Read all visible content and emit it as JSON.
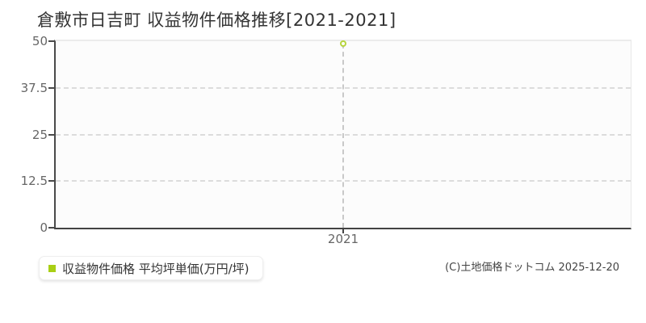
{
  "title": "倉敷市日吉町 収益物件価格推移[2021-2021]",
  "legend": {
    "label": "収益物件価格 平均坪単価(万円/坪)",
    "marker_color": "#a9cf15"
  },
  "copyright": "(C)土地価格ドットコム 2025-12-20",
  "colors": {
    "point_stroke": "#b7d43e",
    "axis": "#4a4a4a",
    "grid": "#dcdcdc",
    "tick_label": "#666666"
  },
  "chart_data": {
    "type": "scatter",
    "title": "倉敷市日吉町 収益物件価格推移[2021-2021]",
    "x": [
      2021
    ],
    "x_tick_labels": [
      "2021"
    ],
    "series": [
      {
        "name": "収益物件価格 平均坪単価(万円/坪)",
        "values": [
          49.3
        ]
      }
    ],
    "xlabel": "",
    "ylabel": "",
    "ylim": [
      0,
      50
    ],
    "y_ticks": [
      0,
      12.5,
      25,
      37.5,
      50
    ],
    "grid": "horizontal-dashed",
    "legend_position": "bottom-left",
    "marker": "open-circle"
  }
}
